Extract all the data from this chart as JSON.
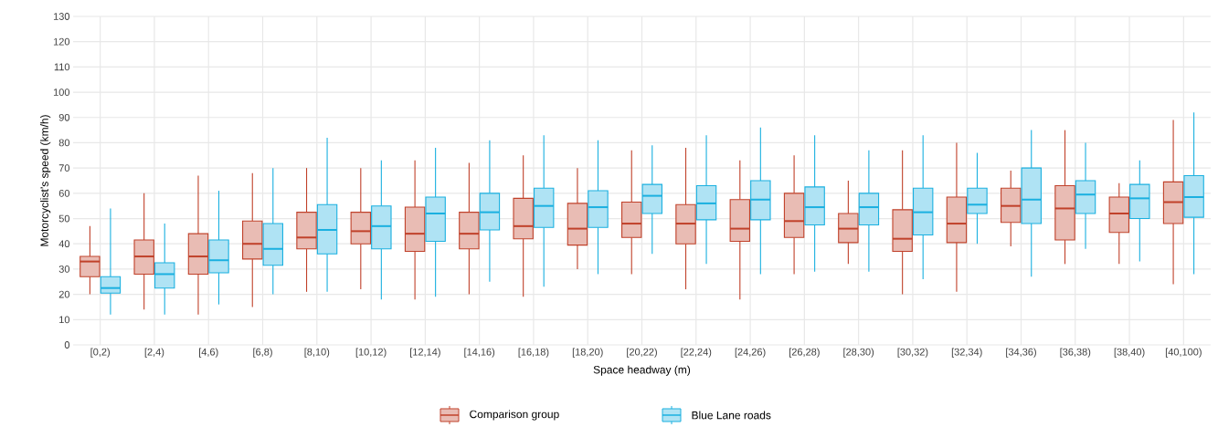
{
  "chart_data": {
    "type": "box",
    "xlabel": "Space headway (m)",
    "ylabel": "Motorcyclist’s speed (km/h)",
    "categories": [
      "[0,2)",
      "[2,4)",
      "[4,6)",
      "[6,8)",
      "[8,10)",
      "[10,12)",
      "[12,14)",
      "[14,16)",
      "[16,18)",
      "[18,20)",
      "[20,22)",
      "[22,24)",
      "[24,26)",
      "[26,28)",
      "[28,30)",
      "[30,32)",
      "[32,34)",
      "[34,36)",
      "[36,38)",
      "[38,40)",
      "[40,100)"
    ],
    "ylim": [
      0,
      130
    ],
    "yticks": [
      0,
      10,
      20,
      30,
      40,
      50,
      60,
      70,
      80,
      90,
      100,
      110,
      120,
      130
    ],
    "grid": true,
    "legend": "bottom",
    "series": [
      {
        "name": "Comparison group",
        "color": "#c0412a",
        "boxes": [
          {
            "low": 20,
            "q1": 27,
            "median": 33,
            "q3": 35,
            "high": 47
          },
          {
            "low": 14,
            "q1": 28,
            "median": 35,
            "q3": 41.5,
            "high": 60
          },
          {
            "low": 12,
            "q1": 28,
            "median": 35,
            "q3": 44,
            "high": 67
          },
          {
            "low": 15,
            "q1": 34,
            "median": 40,
            "q3": 49,
            "high": 68
          },
          {
            "low": 21,
            "q1": 38,
            "median": 42.5,
            "q3": 52.5,
            "high": 70
          },
          {
            "low": 22,
            "q1": 40,
            "median": 45,
            "q3": 52.5,
            "high": 70
          },
          {
            "low": 18,
            "q1": 37,
            "median": 44,
            "q3": 54.5,
            "high": 73
          },
          {
            "low": 20,
            "q1": 38,
            "median": 44,
            "q3": 52.5,
            "high": 72
          },
          {
            "low": 19,
            "q1": 42,
            "median": 47,
            "q3": 58,
            "high": 75
          },
          {
            "low": 30,
            "q1": 39.5,
            "median": 46,
            "q3": 56,
            "high": 70
          },
          {
            "low": 28,
            "q1": 42.5,
            "median": 48,
            "q3": 56.5,
            "high": 77
          },
          {
            "low": 22,
            "q1": 40,
            "median": 48,
            "q3": 55.5,
            "high": 78
          },
          {
            "low": 18,
            "q1": 41,
            "median": 46,
            "q3": 57.5,
            "high": 73
          },
          {
            "low": 28,
            "q1": 42.5,
            "median": 49,
            "q3": 60,
            "high": 75
          },
          {
            "low": 32,
            "q1": 40.5,
            "median": 46,
            "q3": 52,
            "high": 65
          },
          {
            "low": 20,
            "q1": 37,
            "median": 42,
            "q3": 53.5,
            "high": 77
          },
          {
            "low": 21,
            "q1": 40.5,
            "median": 48,
            "q3": 58.5,
            "high": 80
          },
          {
            "low": 39,
            "q1": 48.5,
            "median": 55,
            "q3": 62,
            "high": 69
          },
          {
            "low": 32,
            "q1": 41.5,
            "median": 54,
            "q3": 63,
            "high": 85
          },
          {
            "low": 32,
            "q1": 44.5,
            "median": 52,
            "q3": 58.5,
            "high": 64
          },
          {
            "low": 24,
            "q1": 48,
            "median": 56.5,
            "q3": 64.5,
            "high": 89
          }
        ]
      },
      {
        "name": "Blue Lane roads",
        "color": "#1ab0e0",
        "boxes": [
          {
            "low": 12,
            "q1": 20.5,
            "median": 22.5,
            "q3": 27,
            "high": 54
          },
          {
            "low": 12,
            "q1": 22.5,
            "median": 28,
            "q3": 32.5,
            "high": 48
          },
          {
            "low": 16,
            "q1": 28.5,
            "median": 33.5,
            "q3": 41.5,
            "high": 61
          },
          {
            "low": 20,
            "q1": 31.5,
            "median": 38,
            "q3": 48,
            "high": 70
          },
          {
            "low": 21,
            "q1": 36,
            "median": 45.5,
            "q3": 55.5,
            "high": 82
          },
          {
            "low": 18,
            "q1": 38,
            "median": 47,
            "q3": 55,
            "high": 73
          },
          {
            "low": 19,
            "q1": 41,
            "median": 52,
            "q3": 58.5,
            "high": 78
          },
          {
            "low": 25,
            "q1": 45.5,
            "median": 52.5,
            "q3": 60,
            "high": 81
          },
          {
            "low": 23,
            "q1": 46.5,
            "median": 55,
            "q3": 62,
            "high": 83
          },
          {
            "low": 28,
            "q1": 46.5,
            "median": 54.5,
            "q3": 61,
            "high": 81
          },
          {
            "low": 36,
            "q1": 52,
            "median": 59,
            "q3": 63.5,
            "high": 79
          },
          {
            "low": 32,
            "q1": 49.5,
            "median": 56,
            "q3": 63,
            "high": 83
          },
          {
            "low": 28,
            "q1": 49.5,
            "median": 57.5,
            "q3": 65,
            "high": 86
          },
          {
            "low": 29,
            "q1": 47.5,
            "median": 54.5,
            "q3": 62.5,
            "high": 83
          },
          {
            "low": 29,
            "q1": 47.5,
            "median": 54.5,
            "q3": 60,
            "high": 77
          },
          {
            "low": 26,
            "q1": 43.5,
            "median": 52.5,
            "q3": 62,
            "high": 83
          },
          {
            "low": 40,
            "q1": 52,
            "median": 55.5,
            "q3": 62,
            "high": 76
          },
          {
            "low": 27,
            "q1": 48,
            "median": 57.5,
            "q3": 70,
            "high": 85
          },
          {
            "low": 38,
            "q1": 52,
            "median": 59.5,
            "q3": 65,
            "high": 80
          },
          {
            "low": 33,
            "q1": 50,
            "median": 58,
            "q3": 63.5,
            "high": 73
          },
          {
            "low": 28,
            "q1": 50.5,
            "median": 58.5,
            "q3": 67,
            "high": 92
          }
        ]
      }
    ]
  }
}
